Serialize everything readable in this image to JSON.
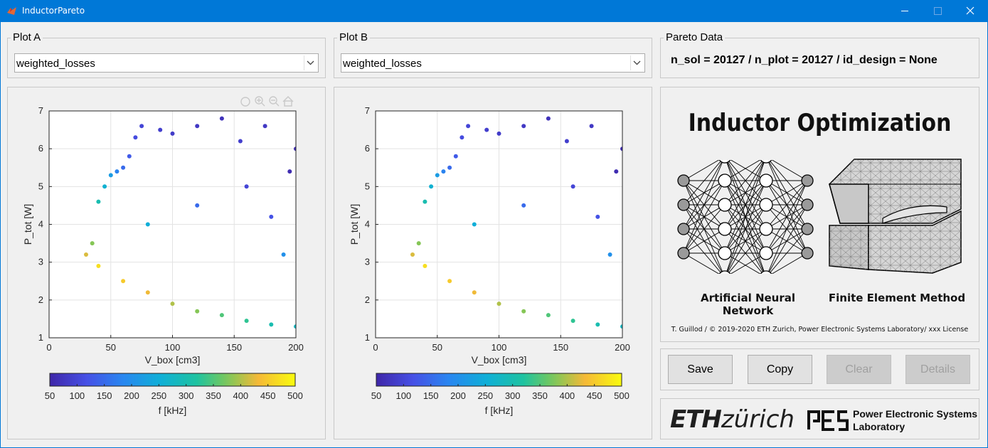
{
  "window": {
    "title": "InductorPareto"
  },
  "plot_a": {
    "title": "Plot A",
    "selected": "weighted_losses"
  },
  "plot_b": {
    "title": "Plot B",
    "selected": "weighted_losses"
  },
  "pareto": {
    "title": "Pareto Data",
    "info": "n_sol = 20127 / n_plot = 20127 / id_design = None"
  },
  "banner": {
    "heading": "Inductor Optimization",
    "left_caption": "Artificial Neural Network",
    "right_caption": "Finite Element Method",
    "credit": "T. Guillod / © 2019-2020 ETH Zurich, Power Electronic Systems Laboratory/ xxx License"
  },
  "buttons": {
    "save": "Save",
    "copy": "Copy",
    "clear": "Clear",
    "details": "Details"
  },
  "logos": {
    "eth_bold": "ETH",
    "eth_rest": "zürich",
    "pes_mark": "PES",
    "pes_line1": "Power Electronic Systems",
    "pes_line2": "Laboratory"
  },
  "colors": {
    "titlebar": "#0078d7",
    "parula_low": "#3e26a8",
    "parula_mid": "#12beb9",
    "parula_high": "#f9fb0e"
  },
  "chart_data": [
    {
      "type": "scatter",
      "xlabel": "V_box [cm3]",
      "ylabel": "P_tot [W]",
      "xlim": [
        0,
        200
      ],
      "ylim": [
        1,
        7
      ],
      "xticks": [
        0,
        50,
        100,
        150,
        200
      ],
      "yticks": [
        1,
        2,
        3,
        4,
        5,
        6,
        7
      ],
      "grid": true,
      "colorbar": {
        "label": "f [kHz]",
        "range": [
          50,
          500
        ],
        "ticks": [
          50,
          100,
          150,
          200,
          250,
          300,
          350,
          400,
          450,
          500
        ],
        "colormap": "parula"
      },
      "points": [
        [
          30,
          3.2,
          420
        ],
        [
          35,
          3.5,
          380
        ],
        [
          40,
          4.6,
          300
        ],
        [
          45,
          5.0,
          260
        ],
        [
          50,
          5.3,
          220
        ],
        [
          55,
          5.4,
          180
        ],
        [
          60,
          5.5,
          150
        ],
        [
          65,
          5.8,
          130
        ],
        [
          70,
          6.3,
          110
        ],
        [
          75,
          6.6,
          100
        ],
        [
          90,
          6.5,
          90
        ],
        [
          100,
          6.4,
          85
        ],
        [
          120,
          6.6,
          80
        ],
        [
          140,
          6.8,
          70
        ],
        [
          155,
          6.2,
          90
        ],
        [
          175,
          6.6,
          80
        ],
        [
          195,
          5.4,
          60
        ],
        [
          200,
          6.0,
          60
        ],
        [
          40,
          2.9,
          470
        ],
        [
          60,
          2.5,
          450
        ],
        [
          80,
          2.2,
          430
        ],
        [
          100,
          1.9,
          400
        ],
        [
          120,
          1.7,
          380
        ],
        [
          140,
          1.6,
          350
        ],
        [
          160,
          1.45,
          330
        ],
        [
          180,
          1.35,
          300
        ],
        [
          200,
          1.3,
          280
        ],
        [
          80,
          4.0,
          250
        ],
        [
          120,
          4.5,
          150
        ],
        [
          160,
          5.0,
          100
        ],
        [
          180,
          4.2,
          120
        ],
        [
          190,
          3.2,
          200
        ]
      ]
    },
    {
      "type": "scatter",
      "xlabel": "V_box [cm3]",
      "ylabel": "P_tot [W]",
      "xlim": [
        0,
        200
      ],
      "ylim": [
        1,
        7
      ],
      "xticks": [
        0,
        50,
        100,
        150,
        200
      ],
      "yticks": [
        1,
        2,
        3,
        4,
        5,
        6,
        7
      ],
      "grid": true,
      "colorbar": {
        "label": "f [kHz]",
        "range": [
          50,
          500
        ],
        "ticks": [
          50,
          100,
          150,
          200,
          250,
          300,
          350,
          400,
          450,
          500
        ],
        "colormap": "parula"
      },
      "points": [
        [
          30,
          3.2,
          420
        ],
        [
          35,
          3.5,
          380
        ],
        [
          40,
          4.6,
          300
        ],
        [
          45,
          5.0,
          260
        ],
        [
          50,
          5.3,
          220
        ],
        [
          55,
          5.4,
          180
        ],
        [
          60,
          5.5,
          150
        ],
        [
          65,
          5.8,
          130
        ],
        [
          70,
          6.3,
          110
        ],
        [
          75,
          6.6,
          100
        ],
        [
          90,
          6.5,
          90
        ],
        [
          100,
          6.4,
          85
        ],
        [
          120,
          6.6,
          80
        ],
        [
          140,
          6.8,
          70
        ],
        [
          155,
          6.2,
          90
        ],
        [
          175,
          6.6,
          80
        ],
        [
          195,
          5.4,
          60
        ],
        [
          200,
          6.0,
          60
        ],
        [
          40,
          2.9,
          470
        ],
        [
          60,
          2.5,
          450
        ],
        [
          80,
          2.2,
          430
        ],
        [
          100,
          1.9,
          400
        ],
        [
          120,
          1.7,
          380
        ],
        [
          140,
          1.6,
          350
        ],
        [
          160,
          1.45,
          330
        ],
        [
          180,
          1.35,
          300
        ],
        [
          200,
          1.3,
          280
        ],
        [
          80,
          4.0,
          250
        ],
        [
          120,
          4.5,
          150
        ],
        [
          160,
          5.0,
          100
        ],
        [
          180,
          4.2,
          120
        ],
        [
          190,
          3.2,
          200
        ]
      ]
    }
  ]
}
